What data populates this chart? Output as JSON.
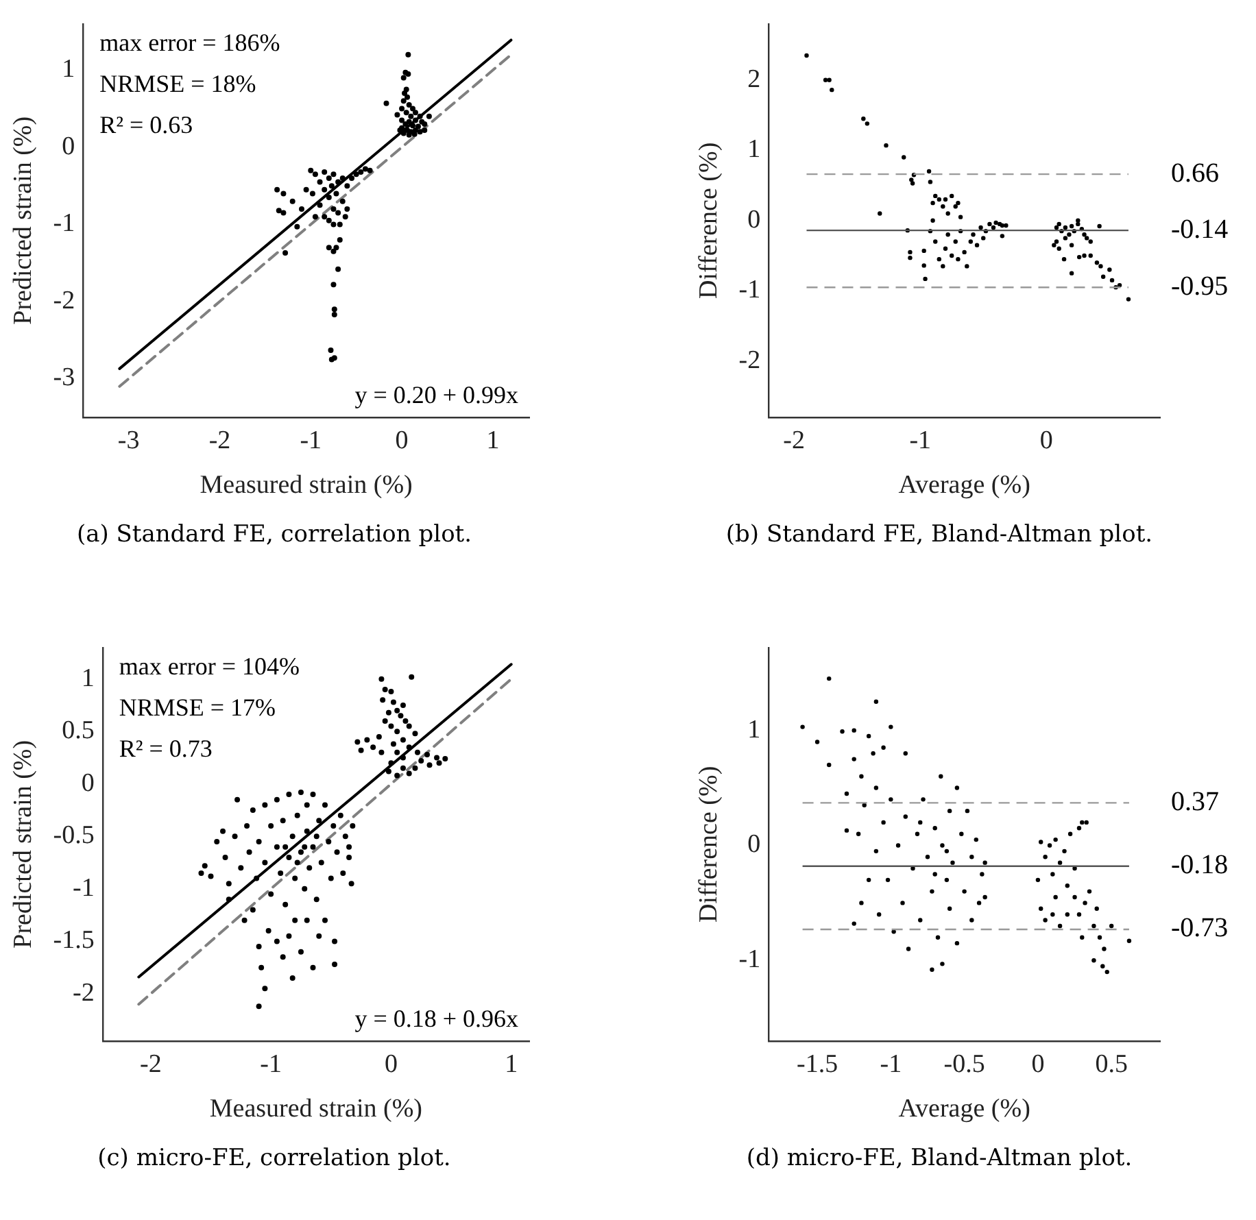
{
  "chart_data": [
    {
      "type": "scatter",
      "title": "(a) Standard FE, correlation plot.",
      "xlabel": "Measured strain (%)",
      "ylabel": "Predicted strain (%)",
      "xlim": [
        -3.5,
        1.4
      ],
      "xticks": [
        -3,
        -2,
        -1,
        0,
        1
      ],
      "ylim": [
        -3.5,
        1.6
      ],
      "yticks": [
        -3,
        -2,
        -1,
        0,
        1
      ],
      "grid": false,
      "annotations": [
        "max error = 186%",
        "NRMSE = 18%",
        "R² = 0.63",
        "y = 0.20 + 0.99x"
      ],
      "series": [
        {
          "type": "scatter",
          "color": "#000000",
          "marker": "circle",
          "x": [
            0.07,
            0.04,
            0.07,
            0.02,
            0.05,
            0.03,
            0.06,
            0.02,
            0.08,
            -0.17,
            0.0,
            0.12,
            0.05,
            0.15,
            -0.05,
            0.1,
            0.2,
            0.3,
            0.0,
            0.08,
            0.15,
            0.22,
            0.04,
            0.12,
            0.18,
            0.25,
            0.0,
            0.06,
            0.1,
            0.15,
            0.2,
            0.02,
            0.08,
            0.14,
            0.25,
            -0.02,
            -1.37,
            -1.3,
            -1.35,
            -1.3,
            -1.2,
            -1.15,
            -1.28,
            -1.05,
            -1.0,
            -0.95,
            -0.98,
            -0.9,
            -0.9,
            -0.85,
            -0.85,
            -0.85,
            -0.8,
            -0.8,
            -0.8,
            -0.77,
            -0.75,
            -0.75,
            -0.75,
            -0.72,
            -0.7,
            -0.7,
            -0.68,
            -0.65,
            -0.65,
            -0.62,
            -0.6,
            -0.6,
            -0.55,
            -0.5,
            -0.45,
            -0.4,
            -0.35,
            -1.1,
            -0.95,
            -0.8,
            -0.75,
            -0.72,
            -0.68,
            -0.7,
            -0.75,
            -0.74,
            -0.74,
            -0.78,
            -0.77,
            -0.74
          ],
          "values": [
            1.2,
            0.97,
            0.95,
            0.9,
            0.75,
            0.7,
            0.65,
            0.6,
            0.55,
            0.57,
            0.5,
            0.5,
            0.45,
            0.45,
            0.42,
            0.4,
            0.4,
            0.4,
            0.35,
            0.33,
            0.35,
            0.33,
            0.3,
            0.28,
            0.27,
            0.3,
            0.25,
            0.22,
            0.2,
            0.22,
            0.2,
            0.18,
            0.16,
            0.17,
            0.22,
            0.22,
            -0.55,
            -0.6,
            -0.82,
            -0.85,
            -0.7,
            -1.03,
            -1.37,
            -0.55,
            -0.3,
            -0.35,
            -0.6,
            -0.45,
            -0.75,
            -0.32,
            -0.55,
            -0.9,
            -0.4,
            -0.65,
            -0.95,
            -0.5,
            -0.35,
            -0.8,
            -1.0,
            -0.6,
            -0.45,
            -0.85,
            -1.0,
            -0.7,
            -0.4,
            -0.9,
            -0.5,
            -0.8,
            -0.4,
            -0.35,
            -0.32,
            -0.28,
            -0.3,
            -0.8,
            -0.9,
            -1.3,
            -1.35,
            -1.3,
            -1.2,
            -1.58,
            -1.78,
            -2.1,
            -2.17,
            -2.63,
            -2.75,
            -2.73
          ]
        },
        {
          "type": "line",
          "color": "#000000",
          "line_style": "solid",
          "x": [
            -3.1,
            1.2
          ],
          "values": [
            -2.87,
            1.39
          ]
        },
        {
          "type": "line",
          "color": "#808080",
          "line_style": "dashed",
          "x": [
            -3.1,
            1.2
          ],
          "values": [
            -3.1,
            1.2
          ]
        }
      ]
    },
    {
      "type": "scatter",
      "title": "(b) Standard FE, Bland-Altman plot.",
      "xlabel": "Average (%)",
      "ylabel": "Difference (%)",
      "xlim": [
        -2.2,
        0.9
      ],
      "xticks": [
        -2,
        -1,
        0
      ],
      "ylim": [
        -2.8,
        2.8
      ],
      "yticks": [
        -2,
        -1,
        0,
        1,
        2
      ],
      "grid": false,
      "ref_lines": [
        {
          "axis": "y",
          "value": 0.66,
          "label": "0.66",
          "color": "#999999",
          "line_style": "dashed"
        },
        {
          "axis": "y",
          "value": -0.14,
          "label": "-0.14",
          "color": "#555555",
          "line_style": "solid"
        },
        {
          "axis": "y",
          "value": -0.95,
          "label": "-0.95",
          "color": "#999999",
          "line_style": "dashed"
        }
      ],
      "series": [
        {
          "type": "scatter",
          "color": "#000000",
          "marker": "circle",
          "x": [
            -1.9,
            -1.75,
            -1.72,
            -1.7,
            -1.45,
            -1.42,
            -1.27,
            -1.13,
            -1.05,
            -1.07,
            -1.06,
            -0.93,
            -0.92,
            -1.32,
            -1.1,
            -1.08,
            -1.08,
            -0.97,
            -0.97,
            -0.96,
            -0.9,
            -0.88,
            -0.85,
            -0.82,
            -0.8,
            -0.78,
            -0.75,
            -0.72,
            -0.7,
            -0.68,
            -0.9,
            -0.92,
            -0.88,
            -0.85,
            -0.82,
            -0.8,
            -0.78,
            -0.75,
            -0.72,
            -0.7,
            -0.68,
            -0.65,
            -0.63,
            -0.6,
            -0.58,
            -0.55,
            -0.52,
            -0.5,
            -0.48,
            -0.45,
            -0.42,
            -0.4,
            -0.37,
            -0.35,
            -0.32,
            -0.35,
            0.08,
            0.1,
            0.12,
            0.15,
            0.18,
            0.2,
            0.22,
            0.25,
            0.28,
            0.3,
            0.32,
            0.25,
            0.08,
            0.1,
            0.14,
            0.2,
            0.2,
            0.26,
            0.3,
            0.35,
            0.35,
            0.4,
            0.42,
            0.43,
            0.45,
            0.5,
            0.52,
            0.55,
            0.58,
            0.65,
            0.06,
            0.15
          ],
          "values": [
            2.35,
            2.0,
            2.0,
            1.86,
            1.45,
            1.38,
            1.07,
            0.9,
            0.65,
            0.58,
            0.53,
            0.7,
            0.55,
            0.1,
            -0.14,
            -0.45,
            -0.53,
            -0.43,
            -0.64,
            -0.83,
            0.25,
            0.35,
            0.3,
            0.2,
            0.3,
            0.1,
            0.35,
            0.2,
            0.25,
            0.05,
            0.0,
            -0.15,
            -0.3,
            -0.55,
            -0.65,
            -0.4,
            -0.2,
            -0.5,
            -0.3,
            -0.55,
            -0.15,
            -0.45,
            -0.65,
            -0.3,
            -0.2,
            -0.35,
            -0.1,
            -0.25,
            -0.15,
            -0.05,
            -0.1,
            -0.03,
            -0.05,
            -0.07,
            -0.07,
            -0.22,
            -0.1,
            -0.05,
            -0.15,
            -0.1,
            -0.2,
            -0.08,
            -0.15,
            -0.05,
            -0.12,
            -0.2,
            -0.25,
            0.0,
            -0.3,
            -0.4,
            -0.55,
            -0.35,
            -0.75,
            -0.52,
            -0.5,
            -0.3,
            -0.5,
            -0.6,
            -0.08,
            -0.65,
            -0.8,
            -0.7,
            -0.85,
            -0.95,
            -0.92,
            -1.12,
            -0.35,
            -0.25
          ]
        }
      ]
    },
    {
      "type": "scatter",
      "title": "(c) micro-FE, correlation plot.",
      "xlabel": "Measured strain (%)",
      "ylabel": "Predicted strain (%)",
      "xlim": [
        -2.4,
        1.15
      ],
      "xticks": [
        -2,
        -1,
        0,
        1
      ],
      "ylim": [
        -2.45,
        1.3
      ],
      "yticks": [
        -2,
        -1.5,
        -1,
        -0.5,
        0,
        0.5,
        1
      ],
      "grid": false,
      "annotations": [
        "max error = 104%",
        "NRMSE = 17%",
        "R² = 0.73",
        "y = 0.18 + 0.96x"
      ],
      "series": [
        {
          "type": "scatter",
          "color": "#000000",
          "marker": "circle",
          "x": [
            -0.08,
            0.17,
            -0.05,
            0.0,
            -0.07,
            0.02,
            0.1,
            0.05,
            -0.02,
            0.08,
            0.12,
            -0.05,
            0.0,
            0.15,
            0.05,
            0.2,
            -0.1,
            -0.2,
            -0.28,
            -0.25,
            0.1,
            0.02,
            0.15,
            0.22,
            0.3,
            0.38,
            0.45,
            0.4,
            0.32,
            0.25,
            0.05,
            -0.08,
            0.0,
            0.1,
            0.05,
            0.15,
            -0.02,
            0.2,
            -0.15,
            0.1,
            -1.58,
            -1.55,
            -1.5,
            -1.45,
            -1.4,
            -1.38,
            -1.35,
            -1.3,
            -1.28,
            -1.25,
            -1.2,
            -1.18,
            -1.15,
            -1.12,
            -1.1,
            -1.05,
            -1.05,
            -1.0,
            -1.0,
            -0.95,
            -0.95,
            -0.92,
            -0.9,
            -0.88,
            -0.85,
            -0.85,
            -0.82,
            -0.8,
            -0.8,
            -0.78,
            -0.75,
            -0.75,
            -0.72,
            -0.7,
            -0.7,
            -0.68,
            -0.65,
            -0.65,
            -0.62,
            -0.6,
            -0.58,
            -0.55,
            -0.52,
            -0.5,
            -0.48,
            -0.45,
            -0.42,
            -0.4,
            -0.38,
            -0.35,
            -0.33,
            -0.32,
            -0.35,
            -0.88,
            -0.78,
            -0.72,
            -0.62,
            -1.22,
            -1.15,
            -1.1,
            -1.08,
            -1.1,
            -1.05,
            -1.02,
            -0.95,
            -0.9,
            -0.85,
            -0.82,
            -0.75,
            -0.7,
            -0.6,
            -0.55,
            -0.47,
            -0.47,
            -1.35,
            -0.65
          ],
          "values": [
            1.0,
            1.02,
            0.9,
            0.88,
            0.8,
            0.78,
            0.75,
            0.7,
            0.68,
            0.65,
            0.6,
            0.6,
            0.55,
            0.55,
            0.5,
            0.48,
            0.45,
            0.42,
            0.4,
            0.32,
            0.42,
            0.38,
            0.35,
            0.3,
            0.28,
            0.25,
            0.24,
            0.2,
            0.18,
            0.22,
            0.3,
            0.3,
            0.2,
            0.15,
            0.08,
            0.1,
            0.12,
            0.15,
            0.35,
            0.25,
            -0.85,
            -0.78,
            -0.88,
            -0.55,
            -0.45,
            -0.7,
            -0.95,
            -0.5,
            -0.15,
            -0.8,
            -0.4,
            -0.65,
            -0.25,
            -0.9,
            -0.55,
            -0.2,
            -0.75,
            -1.05,
            -0.4,
            -0.6,
            -0.15,
            -0.85,
            -0.35,
            -1.15,
            -0.7,
            -0.1,
            -0.5,
            -0.9,
            -1.3,
            -0.3,
            -0.65,
            -0.08,
            -1.0,
            -0.45,
            -0.2,
            -0.8,
            -0.6,
            -0.1,
            -1.1,
            -0.35,
            -0.75,
            -0.2,
            -0.55,
            -0.9,
            -0.4,
            -0.65,
            -0.3,
            -0.85,
            -0.5,
            -0.7,
            -0.95,
            -0.4,
            -0.6,
            -0.6,
            -0.75,
            -0.6,
            -0.5,
            -1.3,
            -1.2,
            -1.55,
            -1.75,
            -2.12,
            -1.95,
            -1.4,
            -1.5,
            -1.65,
            -1.45,
            -1.85,
            -1.6,
            -1.3,
            -1.45,
            -1.3,
            -1.5,
            -1.72,
            -1.1,
            -1.75
          ]
        },
        {
          "type": "line",
          "color": "#000000",
          "line_style": "solid",
          "x": [
            -2.1,
            1.0
          ],
          "values": [
            -1.84,
            1.14
          ]
        },
        {
          "type": "line",
          "color": "#808080",
          "line_style": "dashed",
          "x": [
            -2.1,
            1.0
          ],
          "values": [
            -2.1,
            1.0
          ]
        }
      ]
    },
    {
      "type": "scatter",
      "title": "(d) micro-FE, Bland-Altman plot.",
      "xlabel": "Average (%)",
      "ylabel": "Difference (%)",
      "xlim": [
        -1.83,
        0.83
      ],
      "xticks": [
        -1.5,
        -1,
        -0.5,
        0,
        0.5
      ],
      "ylim": [
        -1.7,
        1.72
      ],
      "yticks": [
        -1,
        0,
        1
      ],
      "grid": false,
      "ref_lines": [
        {
          "axis": "y",
          "value": 0.37,
          "label": "0.37",
          "color": "#999999",
          "line_style": "dashed"
        },
        {
          "axis": "y",
          "value": -0.18,
          "label": "-0.18",
          "color": "#555555",
          "line_style": "solid"
        },
        {
          "axis": "y",
          "value": -0.73,
          "label": "-0.73",
          "color": "#999999",
          "line_style": "dashed"
        }
      ],
      "series": [
        {
          "type": "scatter",
          "color": "#000000",
          "marker": "circle",
          "x": [
            -1.6,
            -1.5,
            -1.42,
            -1.42,
            -1.33,
            -1.3,
            -1.25,
            -1.25,
            -1.22,
            -1.2,
            -1.18,
            -1.15,
            -1.15,
            -1.12,
            -1.1,
            -1.1,
            -1.1,
            -1.08,
            -1.05,
            -1.05,
            -1.02,
            -1.0,
            -1.0,
            -0.98,
            -0.95,
            -0.92,
            -0.9,
            -0.9,
            -0.88,
            -0.85,
            -0.82,
            -0.8,
            -0.78,
            -0.75,
            -0.72,
            -0.72,
            -0.7,
            -0.68,
            -0.66,
            -0.65,
            -0.65,
            -0.62,
            -0.6,
            -0.6,
            -0.58,
            -0.55,
            -0.55,
            -0.52,
            -0.5,
            -0.48,
            -0.45,
            -0.45,
            -0.42,
            -0.4,
            -0.38,
            -0.36,
            -0.36,
            -0.8,
            -0.7,
            -0.62,
            -1.3,
            -1.2,
            -1.25,
            0.02,
            0.05,
            0.08,
            0.1,
            0.12,
            0.15,
            0.18,
            0.2,
            0.22,
            0.25,
            0.28,
            0.3,
            0.33,
            0.25,
            0.28,
            0.32,
            0.35,
            0.38,
            0.4,
            0.42,
            0.45,
            0.47,
            0.44,
            0.5,
            0.62,
            0.02,
            0.05,
            0.1,
            0.15,
            0.0,
            0.12,
            0.2,
            0.3,
            0.38
          ],
          "values": [
            1.03,
            0.9,
            1.45,
            0.7,
            0.99,
            0.45,
            1.0,
            0.75,
            0.1,
            0.6,
            0.35,
            0.95,
            -0.3,
            0.8,
            1.25,
            0.5,
            -0.05,
            -0.6,
            0.85,
            0.2,
            -0.3,
            1.03,
            0.4,
            -0.75,
            0.0,
            -0.5,
            0.8,
            0.25,
            -0.9,
            -0.2,
            0.1,
            -0.65,
            0.4,
            -0.1,
            -1.08,
            -0.4,
            0.15,
            -0.8,
            0.6,
            0.0,
            -1.03,
            -0.3,
            0.3,
            -0.55,
            -0.15,
            0.5,
            -0.85,
            0.1,
            -0.4,
            0.3,
            -0.65,
            -0.1,
            0.05,
            -0.5,
            -0.25,
            -0.45,
            -0.15,
            0.2,
            -0.25,
            -0.05,
            0.13,
            -0.5,
            -0.68,
            0.03,
            -0.1,
            0.0,
            -0.25,
            0.05,
            -0.15,
            -0.05,
            -0.35,
            0.1,
            -0.2,
            0.15,
            0.2,
            0.2,
            -0.45,
            -0.6,
            -0.5,
            -0.4,
            -0.7,
            -0.55,
            -0.8,
            -0.9,
            -1.1,
            -1.05,
            -0.7,
            -0.83,
            -0.55,
            -0.65,
            -0.6,
            -0.7,
            -0.3,
            -0.45,
            -0.6,
            -0.8,
            -1.0
          ]
        }
      ]
    }
  ]
}
